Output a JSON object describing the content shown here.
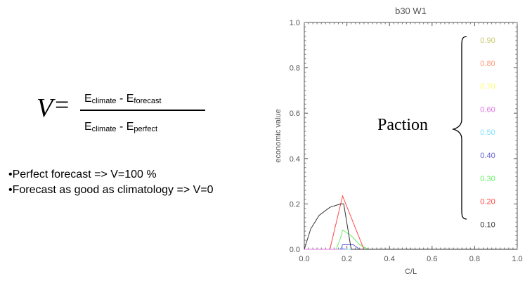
{
  "formula": {
    "lhs": "V",
    "eq": "=",
    "num_a": "E",
    "num_a_sub": "climate",
    "num_sep": " - ",
    "num_b": "E",
    "num_b_sub": "forecast",
    "den_a": "E",
    "den_a_sub": "climate",
    "den_sep": " - ",
    "den_b": "E",
    "den_b_sub": "perfect"
  },
  "bullets": [
    "•Perfect forecast => V=100 %",
    "•Forecast as good as climatology => V=0"
  ],
  "annotation": "Paction",
  "chart_data": {
    "type": "line",
    "title": "b30  W1",
    "xlabel": "C/L",
    "ylabel": "economic value",
    "xlim": [
      0,
      1
    ],
    "ylim": [
      0,
      1
    ],
    "xticks": [
      "0.0",
      "0.2",
      "0.4",
      "0.6",
      "0.8",
      "1.0"
    ],
    "yticks": [
      "0.0",
      "0.2",
      "0.4",
      "0.6",
      "0.8",
      "1.0"
    ],
    "grid": false,
    "legend": "right",
    "series": [
      {
        "name": "0.90",
        "color": "#c8c870",
        "points": [
          [
            0,
            0
          ],
          [
            1,
            0
          ]
        ]
      },
      {
        "name": "0.80",
        "color": "#ff9a7a",
        "points": [
          [
            0,
            0
          ],
          [
            1,
            0
          ]
        ]
      },
      {
        "name": "0.70",
        "color": "#ffff66",
        "points": [
          [
            0,
            0
          ],
          [
            1,
            0
          ]
        ]
      },
      {
        "name": "0.60",
        "color": "#e070e0",
        "points": [
          [
            0,
            0
          ],
          [
            1,
            0
          ]
        ]
      },
      {
        "name": "0.50",
        "color": "#80e0ff",
        "points": [
          [
            0.16,
            0
          ],
          [
            0.18,
            0.005
          ],
          [
            0.2,
            0
          ],
          [
            1,
            0
          ]
        ]
      },
      {
        "name": "0.40",
        "color": "#6060d8",
        "points": [
          [
            0.17,
            0
          ],
          [
            0.18,
            0.02
          ],
          [
            0.23,
            0.02
          ],
          [
            0.26,
            0
          ],
          [
            1,
            0
          ]
        ]
      },
      {
        "name": "0.30",
        "color": "#66ee66",
        "points": [
          [
            0.15,
            0
          ],
          [
            0.17,
            0.05
          ],
          [
            0.18,
            0.085
          ],
          [
            0.22,
            0.06
          ],
          [
            0.26,
            0.02
          ],
          [
            0.3,
            0
          ],
          [
            1,
            0
          ]
        ]
      },
      {
        "name": "0.20",
        "color": "#ff4444",
        "points": [
          [
            0.12,
            0
          ],
          [
            0.18,
            0.235
          ],
          [
            0.28,
            0
          ],
          [
            1,
            0
          ]
        ]
      },
      {
        "name": "0.10",
        "color": "#333333",
        "points": [
          [
            0,
            0
          ],
          [
            0.03,
            0.09
          ],
          [
            0.07,
            0.15
          ],
          [
            0.12,
            0.185
          ],
          [
            0.17,
            0.2
          ],
          [
            0.185,
            0.2
          ],
          [
            0.22,
            0
          ],
          [
            1,
            0
          ]
        ]
      }
    ]
  }
}
